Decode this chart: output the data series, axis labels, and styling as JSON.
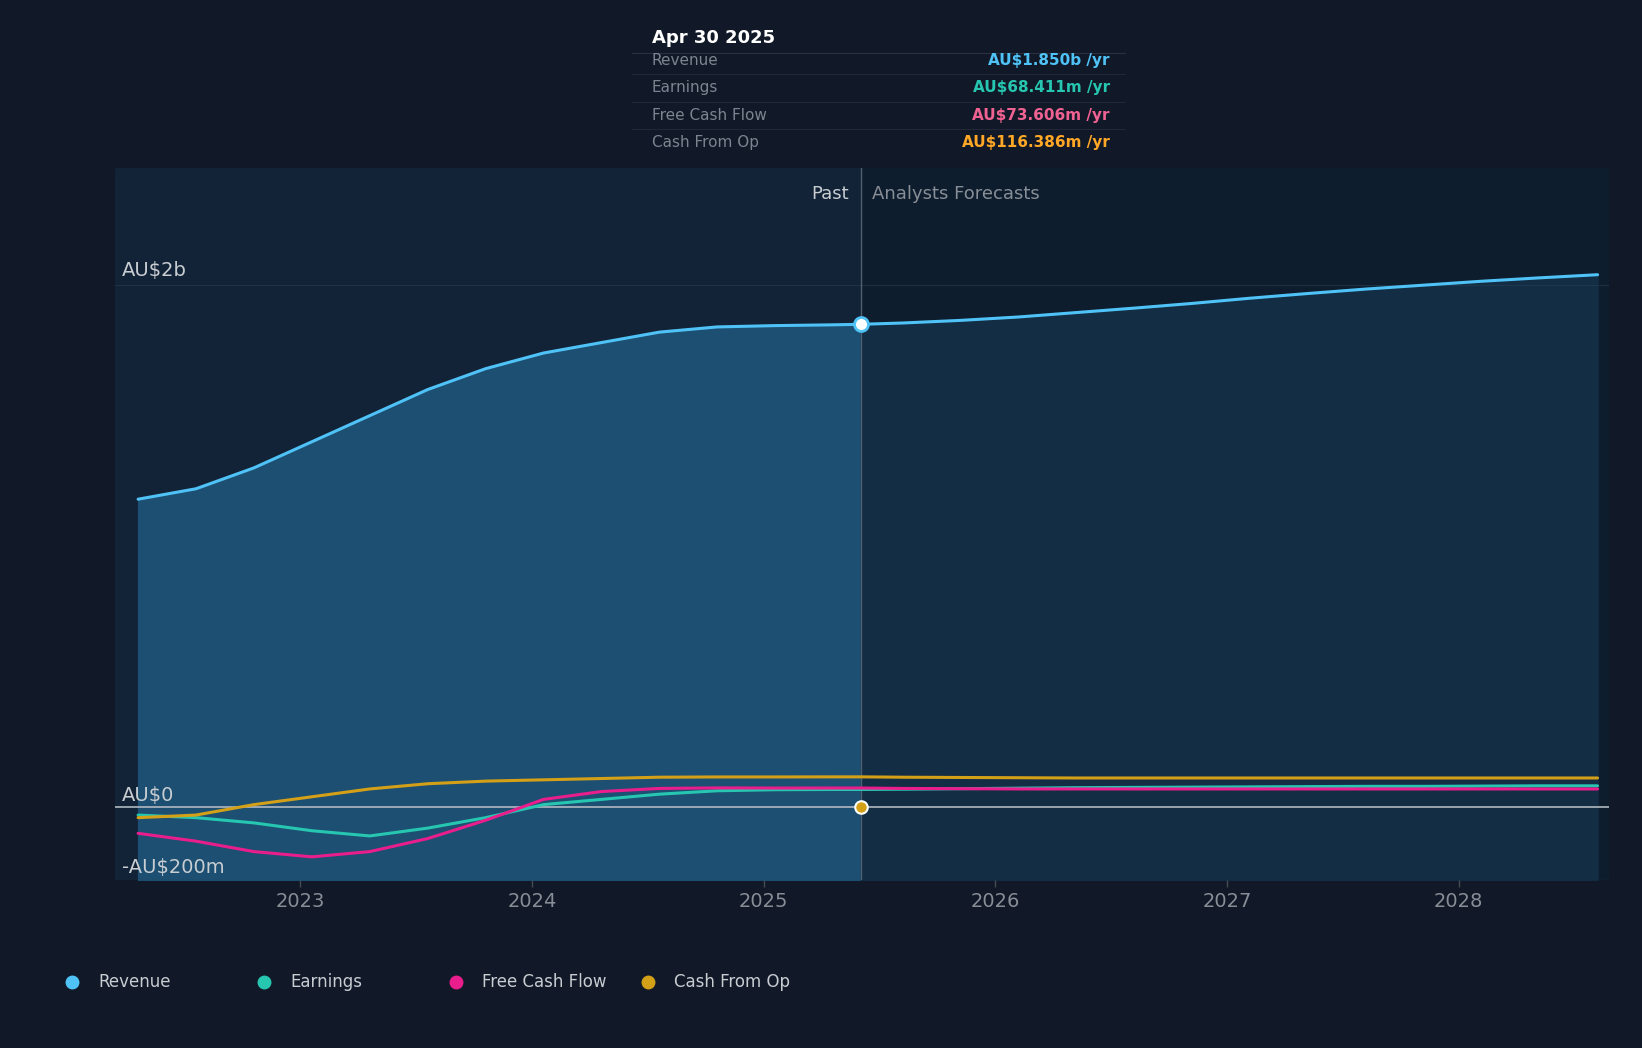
{
  "bg_color": "#111827",
  "past_bg_color": "#132337",
  "future_bg_color": "#0e1d2e",
  "ylabel_2b": "AU$2b",
  "ylabel_0": "AU$0",
  "ylabel_neg200": "-AU$200m",
  "past_label": "Past",
  "forecast_label": "Analysts Forecasts",
  "divider_x": 2025.42,
  "tooltip": {
    "title": "Apr 30 2025",
    "rows": [
      {
        "label": "Revenue",
        "value": "AU$1.850b /yr",
        "color": "#4fc3f7"
      },
      {
        "label": "Earnings",
        "value": "AU$68.411m /yr",
        "color": "#26c6b0"
      },
      {
        "label": "Free Cash Flow",
        "value": "AU$73.606m /yr",
        "color": "#f06292"
      },
      {
        "label": "Cash From Op",
        "value": "AU$116.386m /yr",
        "color": "#ffa726"
      }
    ]
  },
  "revenue": {
    "color": "#4fc3f7",
    "x": [
      2022.3,
      2022.55,
      2022.8,
      2023.05,
      2023.3,
      2023.55,
      2023.8,
      2024.05,
      2024.3,
      2024.55,
      2024.8,
      2025.05,
      2025.3,
      2025.42,
      2025.6,
      2025.85,
      2026.1,
      2026.35,
      2026.6,
      2026.85,
      2027.1,
      2027.35,
      2027.6,
      2027.85,
      2028.1,
      2028.35,
      2028.6
    ],
    "y": [
      1.18,
      1.22,
      1.3,
      1.4,
      1.5,
      1.6,
      1.68,
      1.74,
      1.78,
      1.82,
      1.84,
      1.845,
      1.848,
      1.85,
      1.855,
      1.865,
      1.878,
      1.895,
      1.912,
      1.93,
      1.95,
      1.968,
      1.985,
      2.0,
      2.015,
      2.028,
      2.04
    ]
  },
  "earnings": {
    "color": "#26c6b0",
    "x": [
      2022.3,
      2022.55,
      2022.8,
      2023.05,
      2023.3,
      2023.55,
      2023.8,
      2024.05,
      2024.3,
      2024.55,
      2024.8,
      2025.05,
      2025.3,
      2025.42,
      2025.6,
      2025.85,
      2026.1,
      2026.35,
      2026.6,
      2026.85,
      2027.1,
      2027.35,
      2027.6,
      2027.85,
      2028.1,
      2028.35,
      2028.6
    ],
    "y": [
      -0.03,
      -0.04,
      -0.06,
      -0.09,
      -0.11,
      -0.08,
      -0.04,
      0.01,
      0.03,
      0.05,
      0.063,
      0.067,
      0.068,
      0.068,
      0.069,
      0.071,
      0.073,
      0.075,
      0.076,
      0.077,
      0.078,
      0.079,
      0.08,
      0.08,
      0.081,
      0.082,
      0.082
    ]
  },
  "free_cash_flow": {
    "color": "#e91e8c",
    "x": [
      2022.3,
      2022.55,
      2022.8,
      2023.05,
      2023.3,
      2023.55,
      2023.8,
      2024.05,
      2024.3,
      2024.55,
      2024.8,
      2025.05,
      2025.3,
      2025.42,
      2025.6,
      2025.85,
      2026.1,
      2026.35,
      2026.6,
      2026.85,
      2027.1,
      2027.35,
      2027.6,
      2027.85,
      2028.1,
      2028.35,
      2028.6
    ],
    "y": [
      -0.1,
      -0.13,
      -0.17,
      -0.19,
      -0.17,
      -0.12,
      -0.05,
      0.03,
      0.06,
      0.072,
      0.074,
      0.0735,
      0.0736,
      0.0736,
      0.072,
      0.071,
      0.07,
      0.07,
      0.07,
      0.07,
      0.07,
      0.07,
      0.07,
      0.07,
      0.07,
      0.07,
      0.07
    ]
  },
  "cash_from_op": {
    "color": "#d4a017",
    "x": [
      2022.3,
      2022.55,
      2022.8,
      2023.05,
      2023.3,
      2023.55,
      2023.8,
      2024.05,
      2024.3,
      2024.55,
      2024.8,
      2025.05,
      2025.3,
      2025.42,
      2025.6,
      2025.85,
      2026.1,
      2026.35,
      2026.6,
      2026.85,
      2027.1,
      2027.35,
      2027.6,
      2027.85,
      2028.1,
      2028.35,
      2028.6
    ],
    "y": [
      -0.04,
      -0.03,
      0.01,
      0.04,
      0.07,
      0.09,
      0.1,
      0.105,
      0.11,
      0.115,
      0.116,
      0.116,
      0.1164,
      0.1164,
      0.115,
      0.114,
      0.113,
      0.112,
      0.112,
      0.112,
      0.112,
      0.112,
      0.112,
      0.112,
      0.112,
      0.112,
      0.112
    ]
  },
  "xlim": [
    2022.2,
    2028.65
  ],
  "ylim": [
    -0.28,
    2.45
  ],
  "xticks": [
    2023,
    2024,
    2025,
    2026,
    2027,
    2028
  ],
  "xtick_labels": [
    "2023",
    "2024",
    "2025",
    "2026",
    "2027",
    "2028"
  ],
  "grid_color": "#2a3f52",
  "line_width": 2.2,
  "marker_x": 2025.42,
  "marker_revenue_y": 1.85,
  "legend_items": [
    {
      "label": "Revenue",
      "color": "#4fc3f7"
    },
    {
      "label": "Earnings",
      "color": "#26c6b0"
    },
    {
      "label": "Free Cash Flow",
      "color": "#e91e8c"
    },
    {
      "label": "Cash From Op",
      "color": "#d4a017"
    }
  ]
}
